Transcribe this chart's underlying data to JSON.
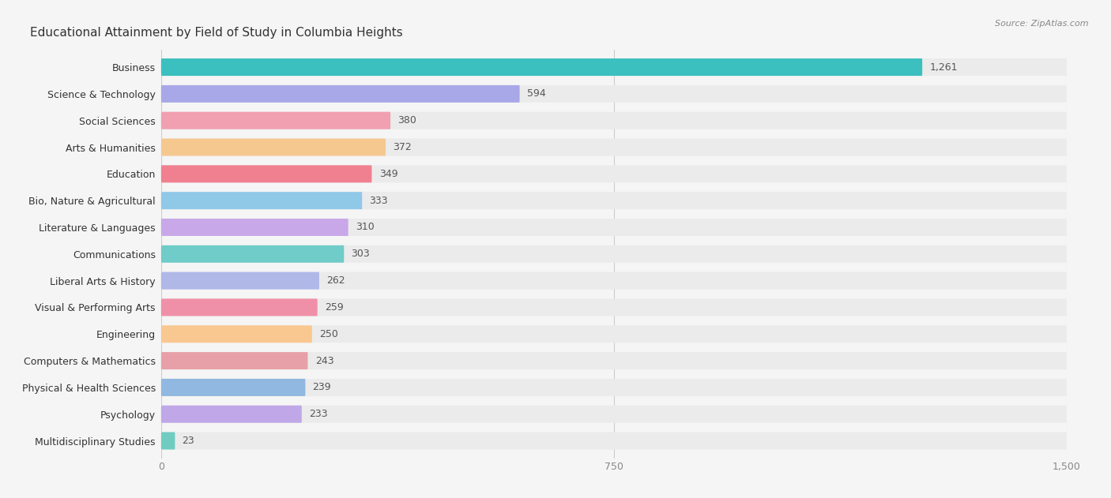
{
  "title": "Educational Attainment by Field of Study in Columbia Heights",
  "source": "Source: ZipAtlas.com",
  "categories": [
    "Business",
    "Science & Technology",
    "Social Sciences",
    "Arts & Humanities",
    "Education",
    "Bio, Nature & Agricultural",
    "Literature & Languages",
    "Communications",
    "Liberal Arts & History",
    "Visual & Performing Arts",
    "Engineering",
    "Computers & Mathematics",
    "Physical & Health Sciences",
    "Psychology",
    "Multidisciplinary Studies"
  ],
  "values": [
    1261,
    594,
    380,
    372,
    349,
    333,
    310,
    303,
    262,
    259,
    250,
    243,
    239,
    233,
    23
  ],
  "colors": [
    "#3bbfbf",
    "#a8a8e8",
    "#f0a0b0",
    "#f5c890",
    "#f08090",
    "#90c8e8",
    "#c8a8e8",
    "#70ccc8",
    "#b0b8e8",
    "#f090a8",
    "#f8c890",
    "#e8a0a8",
    "#90b8e0",
    "#c0a8e8",
    "#70ccc0"
  ],
  "xlim_max": 1500,
  "xticks": [
    0,
    750,
    1500
  ],
  "bg_color": "#f5f5f5",
  "row_bg_color": "#ebebeb",
  "title_fontsize": 11,
  "label_fontsize": 9,
  "value_fontsize": 9,
  "source_fontsize": 8
}
